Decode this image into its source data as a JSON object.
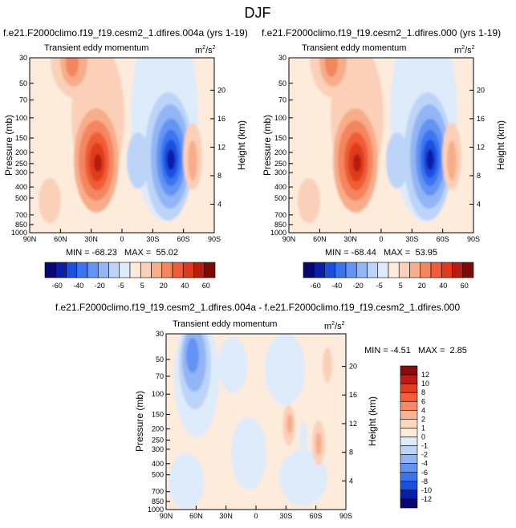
{
  "figure": {
    "title": "DJF"
  },
  "chart_data": [
    {
      "type": "heatmap",
      "case_title": "f.e21.F2000climo.f19_f19.cesm2_1.dfires.004a (yrs 1-19)",
      "left_title": "Transient eddy momentum",
      "units": [
        "m",
        "2",
        "/s",
        "2"
      ],
      "ylabel": "Pressure (mb)",
      "y2label": "Height (km)",
      "x_ticks": [
        "90N",
        "60N",
        "30N",
        "0",
        "30S",
        "60S",
        "90S"
      ],
      "y_ticks": [
        "30",
        "50",
        "70",
        "100",
        "150",
        "200",
        "250",
        "300",
        "400",
        "500",
        "700",
        "850",
        "1000"
      ],
      "y2_ticks": [
        "20",
        "16",
        "12",
        "8",
        "4"
      ],
      "stats": "MIN = -68.23   MAX =  55.02",
      "colorbar_labels": [
        "-60",
        "-40",
        "-20",
        "-5",
        "5",
        "20",
        "40",
        "60"
      ],
      "contour_levels": [
        -60,
        -50,
        -40,
        -30,
        -20,
        -10,
        -5,
        -1,
        1,
        5,
        10,
        20,
        30,
        40,
        50,
        60
      ],
      "min": -68.23,
      "max": 55.02
    },
    {
      "type": "heatmap",
      "case_title": "f.e21.F2000climo.f19_f19.cesm2_1.dfires.000 (yrs 1-19)",
      "left_title": "Transient eddy momentum",
      "units": [
        "m",
        "2",
        "/s",
        "2"
      ],
      "ylabel": "Pressure (mb)",
      "y2label": "Height (km)",
      "x_ticks": [
        "90N",
        "60N",
        "30N",
        "0",
        "30S",
        "60S",
        "90S"
      ],
      "y_ticks": [
        "30",
        "50",
        "70",
        "100",
        "150",
        "200",
        "250",
        "300",
        "400",
        "500",
        "700",
        "850",
        "1000"
      ],
      "y2_ticks": [
        "20",
        "16",
        "12",
        "8",
        "4"
      ],
      "stats": "MIN = -68.44   MAX =  53.95",
      "colorbar_labels": [
        "-60",
        "-40",
        "-20",
        "-5",
        "5",
        "20",
        "40",
        "60"
      ],
      "contour_levels": [
        -60,
        -50,
        -40,
        -30,
        -20,
        -10,
        -5,
        -1,
        1,
        5,
        10,
        20,
        30,
        40,
        50,
        60
      ],
      "min": -68.44,
      "max": 53.95
    },
    {
      "type": "heatmap",
      "case_title": "f.e21.F2000climo.f19_f19.cesm2_1.dfires.004a - f.e21.F2000climo.f19_f19.cesm2_1.dfires.000",
      "left_title": "Transient eddy momentum",
      "units": [
        "m",
        "2",
        "/s",
        "2"
      ],
      "ylabel": "Pressure (mb)",
      "y2label": "Height (km)",
      "x_ticks": [
        "90N",
        "60N",
        "30N",
        "0",
        "30S",
        "60S",
        "90S"
      ],
      "y_ticks": [
        "30",
        "50",
        "70",
        "100",
        "150",
        "200",
        "250",
        "300",
        "400",
        "500",
        "700",
        "850",
        "1000"
      ],
      "y2_ticks": [
        "20",
        "16",
        "12",
        "8",
        "4"
      ],
      "stats": "MIN = -4.51   MAX =  2.85",
      "colorbar_labels": [
        "12",
        "10",
        "8",
        "6",
        "4",
        "2",
        "1",
        "0",
        "-1",
        "-2",
        "-4",
        "-6",
        "-8",
        "-10",
        "-12"
      ],
      "min": -4.51,
      "max": 2.85
    }
  ],
  "colors": {
    "bar_full": [
      "#08086e",
      "#0a1fa8",
      "#1b4fe0",
      "#3b74ef",
      "#6494f3",
      "#92b5f6",
      "#bcd4f8",
      "#deebfb",
      "#fdebdc",
      "#fbd0b8",
      "#f8ad8a",
      "#f4855e",
      "#ef5c36",
      "#e03a1c",
      "#b51e0f",
      "#7e0a06"
    ],
    "bar_diff": [
      "#8a0c0c",
      "#c01a14",
      "#e83a1e",
      "#f25f3a",
      "#f58a66",
      "#f8b594",
      "#fbd7c0",
      "#fdebdc",
      "#deebfb",
      "#bcd4f8",
      "#92b5f6",
      "#6494f3",
      "#3b74ef",
      "#1b4fe0",
      "#0a1fa8",
      "#08086e"
    ]
  }
}
